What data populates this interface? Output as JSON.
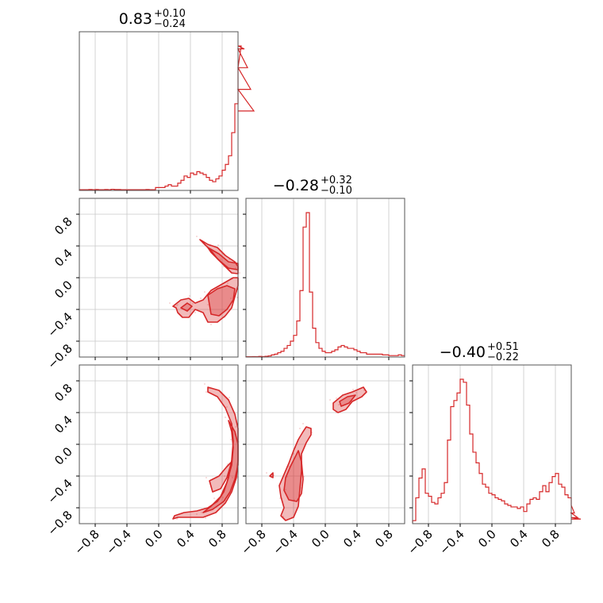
{
  "chart_data": {
    "type": "corner",
    "color": "#d62728",
    "parameters": 3,
    "axis_range": [
      -1.0,
      1.0
    ],
    "tick_values": [
      -0.8,
      -0.4,
      0.0,
      0.4,
      0.8
    ],
    "tick_labels": [
      "−0.8",
      "−0.4",
      "0.0",
      "0.4",
      "0.8"
    ],
    "grid": true,
    "titles": [
      {
        "median": "0.83",
        "plus": "+0.10",
        "minus": "−0.24"
      },
      {
        "median": "−0.28",
        "plus": "+0.32",
        "minus": "−0.10"
      },
      {
        "median": "−0.40",
        "plus": "+0.51",
        "minus": "−0.22"
      }
    ],
    "histograms": [
      {
        "bin_start": -1.0,
        "bin_width": 0.04,
        "counts": [
          0.5,
          0.5,
          0.5,
          0.6,
          0.5,
          0.6,
          0.5,
          0.5,
          0.6,
          0.5,
          0.8,
          0.6,
          0.6,
          0.5,
          0.5,
          0.5,
          0.5,
          0.5,
          0.5,
          0.5,
          0.5,
          0.6,
          0.5,
          0.5,
          2,
          2,
          2,
          3,
          4,
          3,
          3,
          5,
          7,
          10,
          9,
          12,
          11,
          13,
          12,
          11,
          9,
          7,
          6,
          8,
          10,
          14,
          18,
          24,
          40,
          60,
          85,
          100,
          98,
          85,
          70,
          55
        ]
      },
      {
        "bin_start": -1.0,
        "bin_width": 0.04,
        "counts": [
          0.2,
          0.2,
          0.3,
          0.2,
          0.4,
          0.3,
          0.5,
          0.8,
          1.5,
          2,
          3,
          4,
          6,
          8,
          11,
          15,
          25,
          46,
          90,
          100,
          45,
          20,
          10,
          6,
          4,
          3,
          3,
          4,
          5,
          7,
          8,
          7,
          6,
          6,
          5,
          4,
          3,
          3,
          2,
          2,
          2,
          2,
          2,
          1.5,
          1.5,
          1,
          1,
          1,
          1.5,
          1
        ]
      },
      {
        "bin_start": -1.0,
        "bin_width": 0.04,
        "counts": [
          2,
          17,
          30,
          36,
          20,
          18,
          14,
          13,
          17,
          20,
          27,
          55,
          77,
          81,
          86,
          95,
          93,
          78,
          59,
          47,
          40,
          33,
          26,
          24,
          20,
          19,
          17,
          16,
          15,
          13,
          12,
          11,
          11,
          10,
          11,
          8,
          13,
          16,
          17,
          16,
          21,
          25,
          21,
          27,
          31,
          33,
          26,
          24,
          19,
          17,
          12,
          7,
          4,
          3
        ]
      }
    ],
    "contours_2d": [
      {
        "x_param": 0,
        "y_param": 1,
        "levels": [
          {
            "region": [
              [
                0.52,
                0.48
              ],
              [
                0.62,
                0.42
              ],
              [
                0.74,
                0.38
              ],
              [
                0.84,
                0.28
              ],
              [
                0.96,
                0.2
              ],
              [
                1.0,
                0.14
              ],
              [
                1.0,
                0.05
              ],
              [
                0.92,
                0.06
              ],
              [
                0.84,
                0.14
              ],
              [
                0.74,
                0.24
              ],
              [
                0.66,
                0.34
              ],
              [
                0.56,
                0.44
              ]
            ]
          },
          {
            "region": [
              [
                0.62,
                0.38
              ],
              [
                0.76,
                0.3
              ],
              [
                0.88,
                0.2
              ],
              [
                1.0,
                0.18
              ],
              [
                1.0,
                0.1
              ],
              [
                0.88,
                0.12
              ],
              [
                0.76,
                0.22
              ],
              [
                0.66,
                0.32
              ]
            ]
          },
          {
            "region": [
              [
                0.18,
                -0.36
              ],
              [
                0.28,
                -0.28
              ],
              [
                0.38,
                -0.26
              ],
              [
                0.46,
                -0.32
              ],
              [
                0.56,
                -0.28
              ],
              [
                0.66,
                -0.16
              ],
              [
                0.8,
                -0.08
              ],
              [
                0.94,
                0.0
              ],
              [
                1.0,
                0.0
              ],
              [
                1.0,
                -0.1
              ],
              [
                0.96,
                -0.24
              ],
              [
                0.92,
                -0.38
              ],
              [
                0.84,
                -0.48
              ],
              [
                0.74,
                -0.56
              ],
              [
                0.62,
                -0.56
              ],
              [
                0.56,
                -0.44
              ],
              [
                0.46,
                -0.4
              ],
              [
                0.38,
                -0.5
              ],
              [
                0.3,
                -0.5
              ],
              [
                0.24,
                -0.44
              ],
              [
                0.22,
                -0.38
              ]
            ]
          },
          {
            "region": [
              [
                0.62,
                -0.22
              ],
              [
                0.74,
                -0.14
              ],
              [
                0.86,
                -0.1
              ],
              [
                0.96,
                -0.14
              ],
              [
                0.94,
                -0.28
              ],
              [
                0.86,
                -0.4
              ],
              [
                0.76,
                -0.48
              ],
              [
                0.66,
                -0.46
              ],
              [
                0.64,
                -0.34
              ]
            ]
          },
          {
            "region": [
              [
                0.28,
                -0.38
              ],
              [
                0.36,
                -0.32
              ],
              [
                0.42,
                -0.36
              ],
              [
                0.36,
                -0.42
              ]
            ]
          }
        ]
      },
      {
        "x_param": 0,
        "y_param": 2,
        "levels": [
          {
            "region": [
              [
                0.62,
                0.72
              ],
              [
                0.76,
                0.68
              ],
              [
                0.88,
                0.56
              ],
              [
                0.96,
                0.38
              ],
              [
                1.0,
                0.2
              ],
              [
                1.0,
                -0.2
              ],
              [
                0.98,
                -0.42
              ],
              [
                0.92,
                -0.6
              ],
              [
                0.84,
                -0.74
              ],
              [
                0.72,
                -0.86
              ],
              [
                0.56,
                -0.92
              ],
              [
                0.38,
                -0.92
              ],
              [
                0.24,
                -0.92
              ],
              [
                0.18,
                -0.94
              ],
              [
                0.2,
                -0.9
              ],
              [
                0.32,
                -0.86
              ],
              [
                0.48,
                -0.84
              ],
              [
                0.62,
                -0.8
              ],
              [
                0.74,
                -0.72
              ],
              [
                0.82,
                -0.6
              ],
              [
                0.88,
                -0.42
              ],
              [
                0.92,
                -0.2
              ],
              [
                0.94,
                0.04
              ],
              [
                0.92,
                0.26
              ],
              [
                0.84,
                0.46
              ],
              [
                0.74,
                0.6
              ],
              [
                0.62,
                0.66
              ]
            ]
          },
          {
            "region": [
              [
                0.88,
                0.3
              ],
              [
                0.96,
                0.16
              ],
              [
                1.0,
                0.0
              ],
              [
                1.0,
                -0.26
              ],
              [
                0.96,
                -0.44
              ],
              [
                0.9,
                -0.6
              ],
              [
                0.82,
                -0.72
              ],
              [
                0.68,
                -0.82
              ],
              [
                0.56,
                -0.86
              ],
              [
                0.66,
                -0.78
              ],
              [
                0.78,
                -0.66
              ],
              [
                0.86,
                -0.48
              ],
              [
                0.92,
                -0.26
              ],
              [
                0.94,
                -0.04
              ],
              [
                0.92,
                0.16
              ]
            ]
          },
          {
            "region": [
              [
                0.64,
                -0.46
              ],
              [
                0.76,
                -0.4
              ],
              [
                0.86,
                -0.28
              ],
              [
                0.92,
                -0.22
              ],
              [
                0.86,
                -0.42
              ],
              [
                0.78,
                -0.56
              ],
              [
                0.68,
                -0.6
              ]
            ]
          }
        ]
      },
      {
        "x_param": 1,
        "y_param": 2,
        "levels": [
          {
            "region": [
              [
                -0.24,
                0.22
              ],
              [
                -0.18,
                0.2
              ],
              [
                -0.18,
                0.12
              ],
              [
                -0.24,
                0.02
              ],
              [
                -0.3,
                -0.12
              ],
              [
                -0.3,
                -0.34
              ],
              [
                -0.32,
                -0.56
              ],
              [
                -0.34,
                -0.78
              ],
              [
                -0.4,
                -0.92
              ],
              [
                -0.5,
                -0.96
              ],
              [
                -0.56,
                -0.9
              ],
              [
                -0.52,
                -0.8
              ],
              [
                -0.56,
                -0.66
              ],
              [
                -0.58,
                -0.52
              ],
              [
                -0.52,
                -0.38
              ],
              [
                -0.46,
                -0.24
              ],
              [
                -0.4,
                -0.08
              ],
              [
                -0.34,
                0.06
              ],
              [
                -0.28,
                0.16
              ]
            ]
          },
          {
            "region": [
              [
                -0.34,
                -0.08
              ],
              [
                -0.3,
                -0.22
              ],
              [
                -0.28,
                -0.44
              ],
              [
                -0.3,
                -0.62
              ],
              [
                -0.36,
                -0.72
              ],
              [
                -0.46,
                -0.7
              ],
              [
                -0.52,
                -0.58
              ],
              [
                -0.5,
                -0.42
              ],
              [
                -0.44,
                -0.28
              ],
              [
                -0.38,
                -0.16
              ]
            ]
          },
          {
            "region": [
              [
                0.1,
                0.52
              ],
              [
                0.22,
                0.62
              ],
              [
                0.34,
                0.66
              ],
              [
                0.48,
                0.72
              ],
              [
                0.52,
                0.66
              ],
              [
                0.46,
                0.6
              ],
              [
                0.34,
                0.54
              ],
              [
                0.26,
                0.44
              ],
              [
                0.16,
                0.4
              ],
              [
                0.1,
                0.44
              ]
            ]
          },
          {
            "region": [
              [
                0.18,
                0.54
              ],
              [
                0.28,
                0.6
              ],
              [
                0.38,
                0.62
              ],
              [
                0.3,
                0.52
              ],
              [
                0.2,
                0.48
              ]
            ]
          },
          {
            "region": [
              [
                -0.7,
                -0.4
              ],
              [
                -0.66,
                -0.36
              ],
              [
                -0.66,
                -0.42
              ]
            ]
          }
        ]
      }
    ]
  }
}
